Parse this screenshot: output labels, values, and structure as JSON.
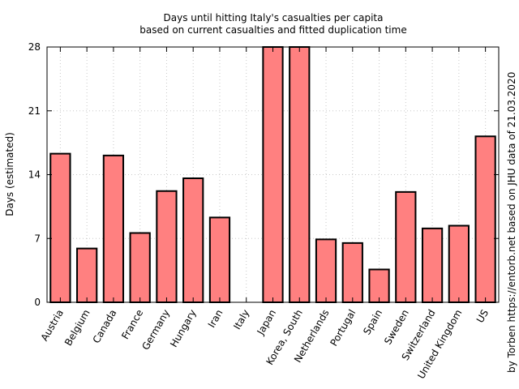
{
  "chart_data": {
    "type": "bar",
    "title": [
      "Days until hitting Italy's casualties per capita",
      "based on current casualties and fitted duplication time"
    ],
    "ylabel": "Days (estimated)",
    "xlabel": "",
    "ylim": [
      0,
      28
    ],
    "yticks": [
      0,
      7,
      14,
      21,
      28
    ],
    "grid": true,
    "bar_color": "#ff8080",
    "bar_edge_color": "#000000",
    "categories": [
      "Austria",
      "Belgium",
      "Canada",
      "France",
      "Germany",
      "Hungary",
      "Iran",
      "Italy",
      "Japan",
      "Korea, South",
      "Netherlands",
      "Portugal",
      "Spain",
      "Sweden",
      "Switzerland",
      "United Kingdom",
      "US"
    ],
    "values": [
      16.3,
      5.9,
      16.1,
      7.6,
      12.2,
      13.6,
      9.3,
      0,
      28,
      28,
      6.9,
      6.5,
      3.6,
      12.1,
      8.1,
      8.4,
      18.2
    ],
    "right_note": "by Torben https://entorb.net based on JHU data of 21.03.2020"
  }
}
